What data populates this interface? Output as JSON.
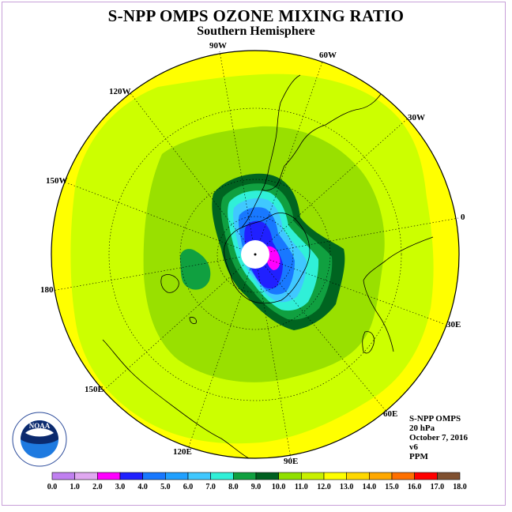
{
  "title": "S-NPP OMPS OZONE MIXING RATIO",
  "subtitle": "Southern Hemisphere",
  "longitude_labels": [
    "90W",
    "60W",
    "30W",
    "0",
    "30E",
    "60E",
    "90E",
    "120E",
    "150E",
    "180",
    "150W",
    "120W"
  ],
  "info": {
    "instrument": "S-NPP OMPS",
    "level": "20 hPa",
    "date": "October 7, 2016",
    "version": "v6",
    "units": "PPM"
  },
  "logo_text": "NOAA",
  "colorbar": {
    "ticks": [
      "0.0",
      "1.0",
      "2.0",
      "3.0",
      "4.0",
      "5.0",
      "6.0",
      "7.0",
      "8.0",
      "9.0",
      "10.0",
      "11.0",
      "12.0",
      "13.0",
      "14.0",
      "15.0",
      "16.0",
      "17.0",
      "18.0"
    ],
    "colors": [
      "#c080f0",
      "#e0a8f0",
      "#ff00ff",
      "#2020ff",
      "#1878ff",
      "#20a0ff",
      "#40c8ff",
      "#30f0d8",
      "#10a040",
      "#006020",
      "#90e000",
      "#c8f000",
      "#ffff00",
      "#ffd800",
      "#ffa800",
      "#ff7000",
      "#ff0000",
      "#805030"
    ]
  },
  "colors": {
    "outer_band": "#ffff00",
    "mid_band": "#ccff00",
    "inner_band": "#99e000",
    "ring_10": "#006420",
    "ring_9": "#10a040",
    "ring_8": "#30f0d8",
    "ring_7": "#40c8ff",
    "ring_5": "#1878ff",
    "core_3": "#2020ff",
    "core_2": "#ff00ff"
  }
}
